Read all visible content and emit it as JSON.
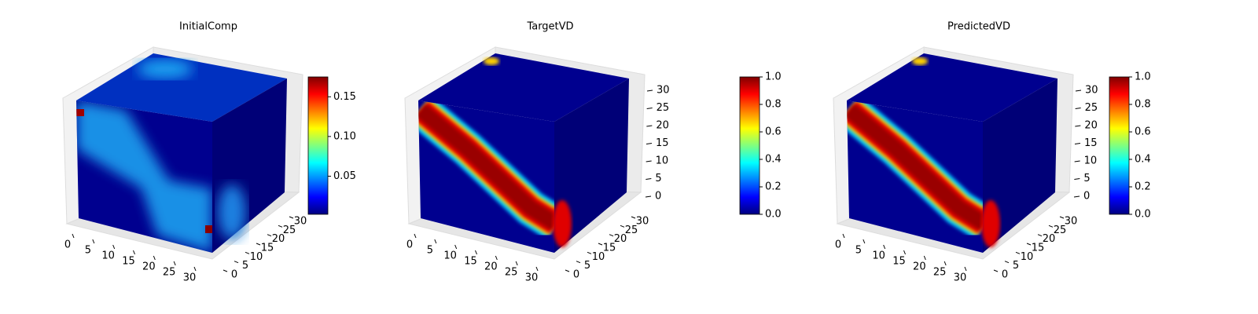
{
  "chart_data": [
    {
      "type": "voxel",
      "title": "InitialComp",
      "xticks": [
        0,
        5,
        10,
        15,
        20,
        25,
        30
      ],
      "yticks": [
        0,
        5,
        10,
        15,
        20,
        25,
        30
      ],
      "xlim": [
        0,
        30
      ],
      "ylim": [
        0,
        30
      ],
      "clim": [
        0.002,
        0.175
      ],
      "cticks": [
        0.05,
        {
          "value": 0.1,
          "label": "0.10"
        },
        0.15
      ]
    },
    {
      "type": "voxel",
      "title": "TargetVD",
      "xticks": [
        0,
        5,
        10,
        15,
        20,
        25,
        30
      ],
      "yticks": [
        0,
        5,
        10,
        15,
        20,
        25,
        30
      ],
      "zticks": [
        0,
        5,
        10,
        15,
        20,
        25,
        30
      ],
      "xlim": [
        0,
        30
      ],
      "ylim": [
        0,
        30
      ],
      "zlim": [
        0,
        30
      ],
      "clim": [
        0,
        1
      ],
      "cticks": [
        {
          "value": 0,
          "label": "0.0"
        },
        0.2,
        0.4,
        0.6,
        0.8,
        {
          "value": 1,
          "label": "1.0"
        }
      ]
    },
    {
      "type": "voxel",
      "title": "PredictedVD",
      "xticks": [
        0,
        5,
        10,
        15,
        20,
        25,
        30
      ],
      "yticks": [
        0,
        5,
        10,
        15,
        20,
        25,
        30
      ],
      "zticks": [
        0,
        5,
        10,
        15,
        20,
        25,
        30
      ],
      "xlim": [
        0,
        30
      ],
      "ylim": [
        0,
        30
      ],
      "zlim": [
        0,
        30
      ],
      "clim": [
        0,
        1
      ],
      "cticks": [
        {
          "value": 0,
          "label": "0.0"
        },
        0.2,
        0.4,
        0.6,
        0.8,
        {
          "value": 1,
          "label": "1.0"
        }
      ]
    }
  ]
}
